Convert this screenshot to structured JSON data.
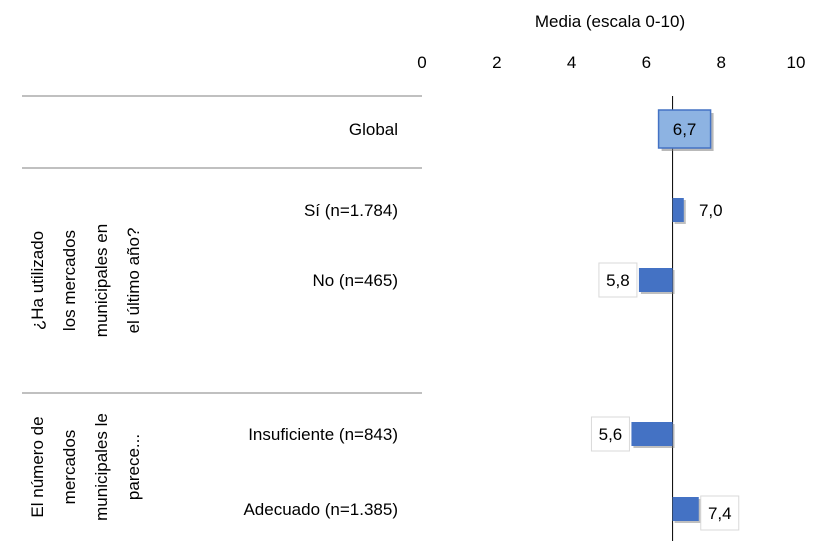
{
  "chart_data": {
    "type": "bar",
    "orientation": "horizontal",
    "title": "Media (escala 0-10)",
    "xlim": [
      0,
      10
    ],
    "xticks": [
      "0",
      "2",
      "4",
      "6",
      "8",
      "10"
    ],
    "reference_value": 6.7,
    "bar_color": "#4472C4",
    "highlight_color": "#8DB3E2",
    "groups": [
      {
        "label": "",
        "rows": [
          {
            "label": "Global",
            "value": 6.7,
            "value_label": "6,7",
            "highlight": true
          }
        ]
      },
      {
        "label": "¿Ha utilizado los mercados municipales en el último año?",
        "rows": [
          {
            "label": "Sí (n=1.784)",
            "value": 7.0,
            "value_label": "7,0"
          },
          {
            "label": "No (n=465)",
            "value": 5.8,
            "value_label": "5,8"
          }
        ]
      },
      {
        "label": "El número de mercados municipales le parece...",
        "rows": [
          {
            "label": "Insuficiente (n=843)",
            "value": 5.6,
            "value_label": "5,6"
          },
          {
            "label": "Adecuado (n=1.385)",
            "value": 7.4,
            "value_label": "7,4"
          }
        ]
      }
    ]
  }
}
